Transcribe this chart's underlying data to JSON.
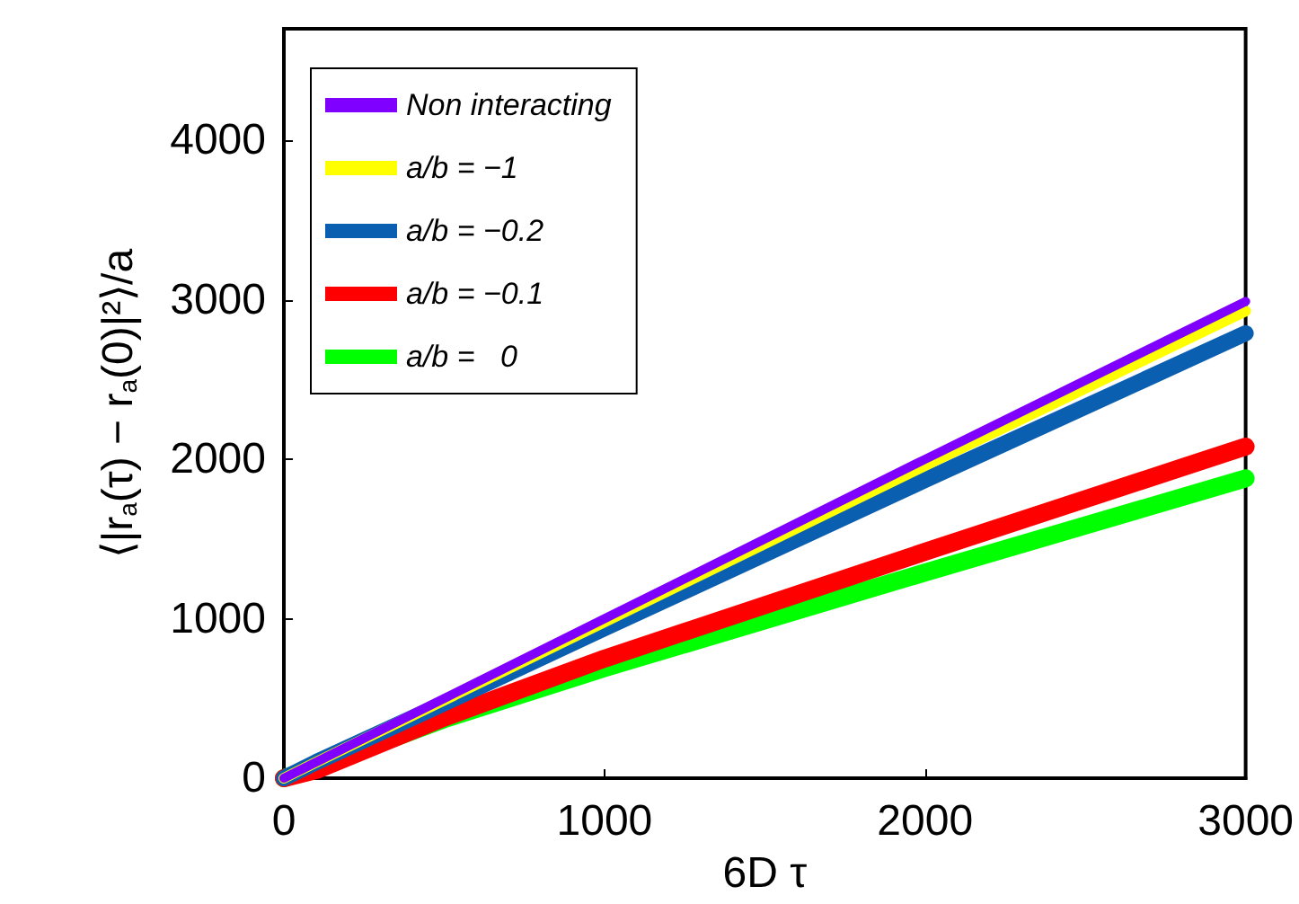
{
  "chart_data": {
    "type": "line",
    "xlabel": "6D τ",
    "ylabel": "⟨|r$_{a}$(τ) − r$_{a}$(0)|²⟩/a",
    "xlim": [
      0,
      3000
    ],
    "xticks": [
      0,
      1000,
      2000,
      3000
    ],
    "ylim": [
      0,
      4700
    ],
    "yticks": [
      0,
      1000,
      2000,
      3000,
      4000
    ],
    "grid": false,
    "legend": "top left",
    "marker": "none",
    "line_style": "solid",
    "x": [
      0,
      100,
      500,
      1000,
      2000,
      3000
    ],
    "series": [
      {
        "name": "Non interacting",
        "color": "#8000ff",
        "values": [
          0,
          100,
          500,
          1000,
          2000,
          2990
        ]
      },
      {
        "name": "a/b = −1",
        "color": "#ffff00",
        "values": [
          0,
          100,
          490,
          980,
          1960,
          2930
        ]
      },
      {
        "name": "a/b = −0.2",
        "color": "#0a5fb0",
        "values": [
          0,
          100,
          470,
          940,
          1870,
          2790
        ]
      },
      {
        "name": "a/b = −0.1",
        "color": "#ff0000",
        "values": [
          0,
          50,
          380,
          750,
          1420,
          2080
        ]
      },
      {
        "name": "a/b =   0",
        "color": "#00ff00",
        "values": [
          0,
          70,
          370,
          690,
          1290,
          1880
        ]
      }
    ]
  }
}
